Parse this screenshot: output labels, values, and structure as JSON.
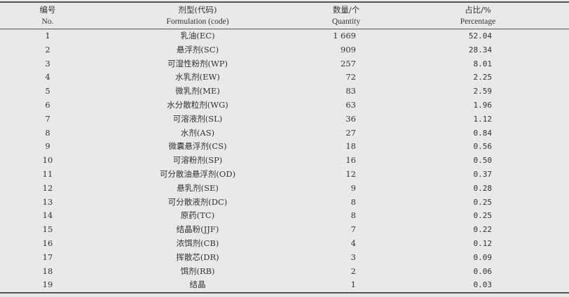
{
  "table": {
    "headers": [
      {
        "zh": "编号",
        "en": "No."
      },
      {
        "zh": "剂型(代码)",
        "en": "Formulation (code)"
      },
      {
        "zh": "数量/个",
        "en": "Quantity"
      },
      {
        "zh": "占比/%",
        "en": "Percentage"
      }
    ],
    "rows": [
      {
        "no": "1",
        "formulation": "乳油(EC)",
        "quantity": "1 669",
        "percentage": "52.04"
      },
      {
        "no": "2",
        "formulation": "悬浮剂(SC)",
        "quantity": "909",
        "percentage": "28.34"
      },
      {
        "no": "3",
        "formulation": "可湿性粉剂(WP)",
        "quantity": "257",
        "percentage": "8.01"
      },
      {
        "no": "4",
        "formulation": "水乳剂(EW)",
        "quantity": "72",
        "percentage": "2.25"
      },
      {
        "no": "5",
        "formulation": "微乳剂(ME)",
        "quantity": "83",
        "percentage": "2.59"
      },
      {
        "no": "6",
        "formulation": "水分散粒剂(WG)",
        "quantity": "63",
        "percentage": "1.96"
      },
      {
        "no": "7",
        "formulation": "可溶液剂(SL)",
        "quantity": "36",
        "percentage": "1.12"
      },
      {
        "no": "8",
        "formulation": "水剂(AS)",
        "quantity": "27",
        "percentage": "0.84"
      },
      {
        "no": "9",
        "formulation": "微囊悬浮剂(CS)",
        "quantity": "18",
        "percentage": "0.56"
      },
      {
        "no": "10",
        "formulation": "可溶粉剂(SP)",
        "quantity": "16",
        "percentage": "0.50"
      },
      {
        "no": "11",
        "formulation": "可分散油悬浮剂(OD)",
        "quantity": "12",
        "percentage": "0.37"
      },
      {
        "no": "12",
        "formulation": "悬乳剂(SE)",
        "quantity": "9",
        "percentage": "0.28"
      },
      {
        "no": "13",
        "formulation": "可分散液剂(DC)",
        "quantity": "8",
        "percentage": "0.25"
      },
      {
        "no": "14",
        "formulation": "原药(TC)",
        "quantity": "8",
        "percentage": "0.25"
      },
      {
        "no": "15",
        "formulation": "结晶粉(JJF)",
        "quantity": "7",
        "percentage": "0.22"
      },
      {
        "no": "16",
        "formulation": "浓饵剂(CB)",
        "quantity": "4",
        "percentage": "0.12"
      },
      {
        "no": "17",
        "formulation": "挥散芯(DR)",
        "quantity": "3",
        "percentage": "0.09"
      },
      {
        "no": "18",
        "formulation": "饵剂(RB)",
        "quantity": "2",
        "percentage": "0.06"
      },
      {
        "no": "19",
        "formulation": "结晶",
        "quantity": "1",
        "percentage": "0.03"
      }
    ]
  }
}
